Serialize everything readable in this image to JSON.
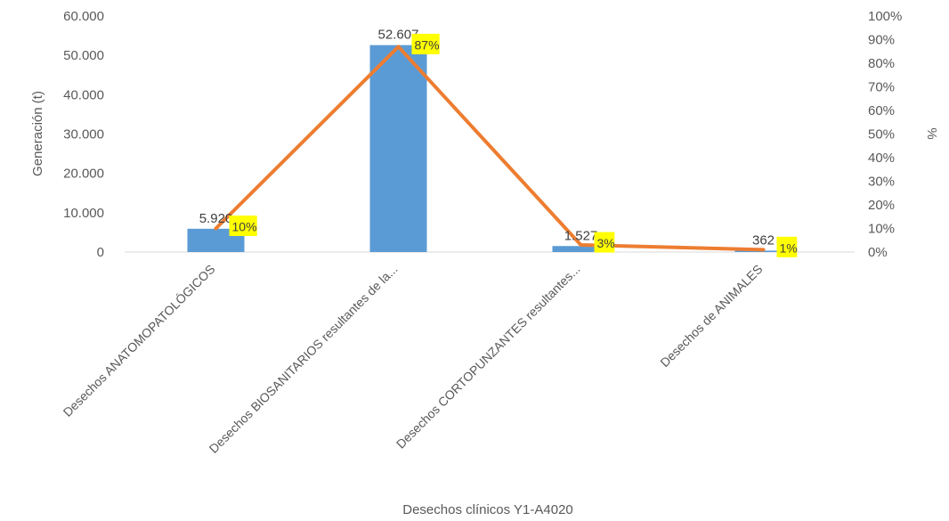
{
  "chart_data": {
    "type": "bar+line",
    "title": "",
    "xlabel": "Desechos clínicos Y1-A4020",
    "ylabel": "Generación (t)",
    "y2label": "%",
    "ylim": [
      0,
      60000
    ],
    "y2lim": [
      0,
      100
    ],
    "yticks": [
      "0",
      "10.000",
      "20.000",
      "30.000",
      "40.000",
      "50.000",
      "60.000"
    ],
    "y2ticks": [
      "0%",
      "10%",
      "20%",
      "30%",
      "40%",
      "50%",
      "60%",
      "70%",
      "80%",
      "90%",
      "100%"
    ],
    "categories": [
      "Desechos  ANATOMOPATOLÓGICOS",
      "Desechos  BIOSANITARIOS resultantes de la...",
      "Desechos CORTOPUNZANTES resultantes...",
      "Desechos de ANIMALES"
    ],
    "bars": {
      "values": [
        5920,
        52607,
        1527,
        362
      ],
      "labels": [
        "5.920",
        "52.607",
        "1.527",
        "362"
      ],
      "color": "#5B9BD5"
    },
    "line": {
      "values": [
        10,
        87,
        3,
        1
      ],
      "labels": [
        "10%",
        "87%",
        "3%",
        "1%"
      ],
      "color": "#ED7D31",
      "label_background": "#FFFF00"
    },
    "grid": false,
    "legend": "none"
  }
}
